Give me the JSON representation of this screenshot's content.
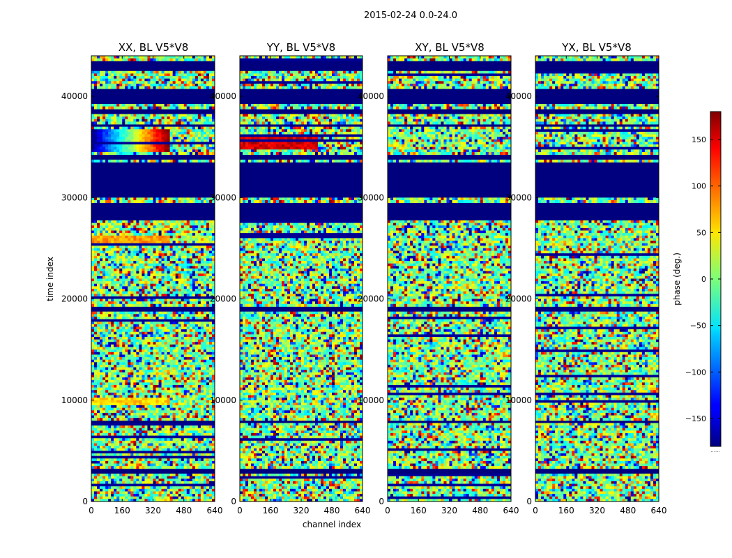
{
  "chart_data": {
    "type": "heatmap",
    "suptitle": "2015-02-24 0.0-24.0",
    "xlabel": "channel index",
    "ylabel": "time index",
    "colorbar_label": "phase (deg.)",
    "colorbar_extra": "......",
    "colorbar_range": [
      -180,
      180
    ],
    "colorbar_ticks": [
      150,
      100,
      50,
      0,
      -50,
      -100,
      -150
    ],
    "colormap": "jet",
    "x_range": [
      0,
      640
    ],
    "y_range": [
      0,
      44000
    ],
    "x_ticks": [
      0,
      160,
      320,
      480,
      640
    ],
    "y_ticks": [
      0,
      10000,
      20000,
      30000,
      40000
    ],
    "panels": [
      {
        "title": "XX, BL V5*V8",
        "id": "xx"
      },
      {
        "title": "YY, BL V5*V8",
        "id": "yy"
      },
      {
        "title": "XY, BL V5*V8",
        "id": "xy"
      },
      {
        "title": "YX, BL V5*V8",
        "id": "yx"
      }
    ],
    "flagged_time_ranges": [
      [
        2800,
        3300
      ],
      [
        7700,
        8100
      ],
      [
        18800,
        19300
      ],
      [
        27800,
        29600
      ],
      [
        29900,
        33500
      ],
      [
        33800,
        34200
      ],
      [
        36900,
        37300
      ],
      [
        38300,
        38700
      ],
      [
        39200,
        40700
      ],
      [
        42500,
        43400
      ]
    ],
    "features": [
      {
        "panel": "xx",
        "time_range": [
          34500,
          36700
        ],
        "description": "phase ramp from -180 to 180 deg across channels 0-400"
      },
      {
        "panel": "yy",
        "time_range": [
          34700,
          36300
        ],
        "description": "coherent phase near 150 deg across channels 0-400"
      },
      {
        "panel": "xx",
        "time_range": [
          25500,
          26300
        ],
        "description": "coherent phase near 80 deg across channels 0-400"
      },
      {
        "panel": "xx",
        "time_range": [
          9500,
          10200
        ],
        "description": "coherent phase near 60 deg across channels 0-400"
      }
    ]
  }
}
